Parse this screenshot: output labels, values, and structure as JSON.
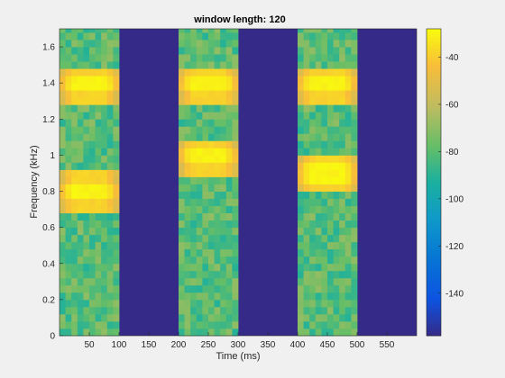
{
  "chart_data": {
    "type": "heatmap",
    "title": "window length: 120",
    "xlabel": "Time (ms)",
    "ylabel": "Frequency (kHz)",
    "xlim": [
      0,
      600
    ],
    "ylim": [
      0,
      1.7
    ],
    "xticks": [
      50,
      100,
      150,
      200,
      250,
      300,
      350,
      400,
      450,
      500,
      550
    ],
    "yticks": [
      0,
      0.2,
      0.4,
      0.6,
      0.8,
      1,
      1.2,
      1.4,
      1.6
    ],
    "yticklabels": [
      "0",
      "0.2",
      "0.4",
      "0.6",
      "0.8",
      "1",
      "1.2",
      "1.4",
      "1.6"
    ],
    "colorbar": {
      "clim": [
        -158,
        -28
      ],
      "ticks": [
        -40,
        -60,
        -80,
        -100,
        -120,
        -140
      ],
      "colormap": "parula"
    },
    "background_level": -158,
    "noise_level": -80,
    "segments": [
      {
        "t_start": 0,
        "t_end": 100,
        "tones_khz": [
          0.8,
          1.4
        ]
      },
      {
        "t_start": 200,
        "t_end": 300,
        "tones_khz": [
          1.0,
          1.4
        ]
      },
      {
        "t_start": 400,
        "t_end": 500,
        "tones_khz": [
          0.9,
          1.4
        ]
      }
    ],
    "tone_peak_level": -30,
    "tone_halfwidth_khz": 0.1,
    "grid": false,
    "legend": "none"
  }
}
